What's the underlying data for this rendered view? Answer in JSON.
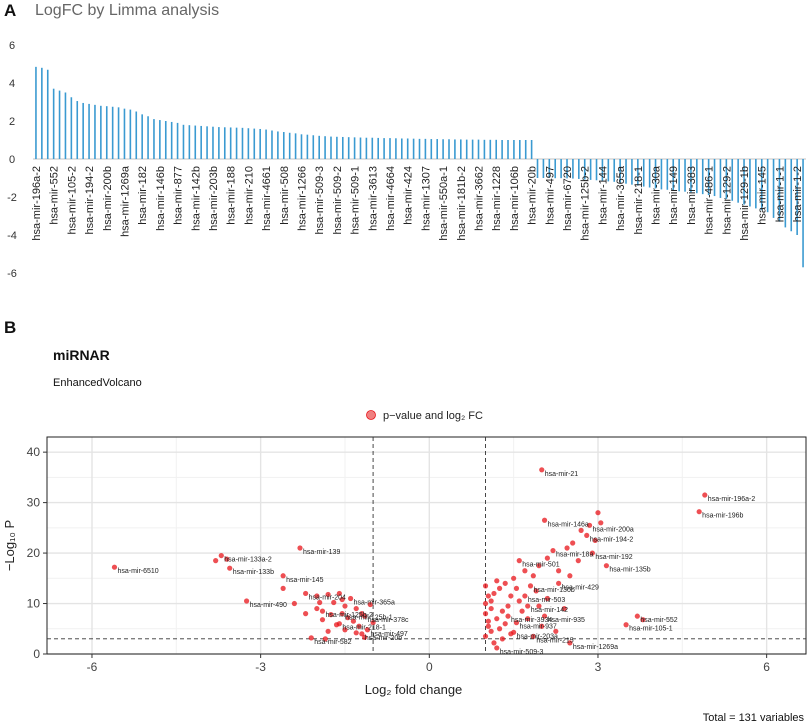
{
  "panel_a_letter": "A",
  "panel_b_letter": "B",
  "chart_data": [
    {
      "type": "bar",
      "title": "LogFC by Limma analysis",
      "xlabel": "",
      "ylabel": "",
      "ylim": [
        -6,
        6
      ],
      "yticks": [
        6,
        4,
        2,
        0,
        -2,
        -4,
        -6
      ],
      "bar_color": "#3a9ad1",
      "label_every": 3,
      "categories": [
        "hsa-mir-196a-2",
        "hsa-mir-196b",
        "hsa-mir-146a",
        "hsa-mir-552",
        "hsa-mir-18a",
        "hsa-mir-21",
        "hsa-mir-105-2",
        "hsa-mir-105-1",
        "hsa-mir-200a",
        "hsa-mir-194-2",
        "hsa-mir-135b",
        "hsa-mir-192",
        "hsa-mir-200b",
        "hsa-mir-9-1",
        "hsa-mir-9-2",
        "hsa-mir-1269a",
        "hsa-mir-429",
        "hsa-mir-224",
        "hsa-mir-182",
        "hsa-mir-183",
        "hsa-mir-142",
        "hsa-mir-146b",
        "hsa-mir-501",
        "hsa-mir-503",
        "hsa-mir-877",
        "hsa-mir-130b",
        "hsa-mir-935",
        "hsa-mir-142b",
        "hsa-mir-937",
        "hsa-mir-3934",
        "hsa-mir-203b",
        "hsa-mir-215",
        "hsa-mir-1293",
        "hsa-mir-188",
        "hsa-mir-203a",
        "hsa-mir-509-1b",
        "hsa-mir-210",
        "hsa-mir-4662",
        "hsa-mir-3677",
        "hsa-mir-4661",
        "hsa-mir-3127",
        "hsa-mir-1976",
        "hsa-mir-508",
        "hsa-mir-514-1",
        "hsa-mir-514-2",
        "hsa-mir-1266",
        "hsa-mir-3609",
        "hsa-mir-4652",
        "hsa-mir-509-3",
        "hsa-mir-3200",
        "hsa-mir-3940",
        "hsa-mir-509-2",
        "hsa-mir-4326",
        "hsa-mir-5001",
        "hsa-mir-509-1",
        "hsa-mir-3605",
        "hsa-mir-3622",
        "hsa-mir-3613",
        "hsa-mir-4286",
        "hsa-mir-3917",
        "hsa-mir-4664",
        "hsa-mir-548f",
        "hsa-mir-548j",
        "hsa-mir-424",
        "hsa-mir-4640",
        "hsa-mir-3151",
        "hsa-mir-1307",
        "hsa-mir-550a-2",
        "hsa-mir-675",
        "hsa-mir-550a-1",
        "hsa-mir-4709",
        "hsa-mir-3191",
        "hsa-mir-181b-2",
        "hsa-mir-181a-2",
        "hsa-mir-3139",
        "hsa-mir-3662",
        "hsa-mir-3065",
        "hsa-mir-1249",
        "hsa-mir-1228",
        "hsa-mir-3174",
        "hsa-mir-5691",
        "hsa-mir-106b",
        "hsa-mir-3607",
        "hsa-mir-3677b",
        "hsa-mir-20b",
        "hsa-mir-363",
        "hsa-mir-1287",
        "hsa-mir-497",
        "hsa-mir-195",
        "hsa-mir-218-2",
        "hsa-mir-6720",
        "hsa-mir-378c",
        "hsa-mir-3614",
        "hsa-mir-125b-2",
        "hsa-mir-125b-1",
        "hsa-mir-99a",
        "hsa-mir-144",
        "hsa-mir-451a",
        "hsa-mir-100",
        "hsa-mir-365a",
        "hsa-mir-490",
        "hsa-mir-133b",
        "hsa-mir-218-1",
        "hsa-mir-139",
        "hsa-mir-204",
        "hsa-mir-30a",
        "hsa-mir-30c-2",
        "hsa-mir-1-2b",
        "hsa-mir-149",
        "hsa-mir-486-2",
        "hsa-mir-143",
        "hsa-mir-383",
        "hsa-mir-4423",
        "hsa-mir-6507",
        "hsa-mir-486-1",
        "hsa-mir-326",
        "hsa-mir-129-1",
        "hsa-mir-129-2",
        "hsa-mir-1-1b",
        "hsa-mir-133a-1",
        "hsa-mir-129-1b",
        "hsa-mir-1-2c",
        "hsa-mir-133a-2",
        "hsa-mir-145",
        "hsa-mir-6510",
        "hsa-mir-1-1c",
        "hsa-mir-1-1",
        "hsa-mir-133a-3",
        "hsa-mir-206",
        "hsa-mir-1-2",
        "hsa-mir-6510b"
      ],
      "values": [
        4.85,
        4.8,
        4.7,
        3.7,
        3.6,
        3.5,
        3.25,
        3.05,
        2.95,
        2.9,
        2.85,
        2.8,
        2.78,
        2.75,
        2.72,
        2.65,
        2.6,
        2.5,
        2.35,
        2.25,
        2.1,
        2.05,
        2.0,
        1.95,
        1.9,
        1.8,
        1.78,
        1.76,
        1.74,
        1.72,
        1.7,
        1.68,
        1.67,
        1.66,
        1.65,
        1.64,
        1.62,
        1.6,
        1.58,
        1.55,
        1.5,
        1.45,
        1.42,
        1.38,
        1.35,
        1.3,
        1.28,
        1.25,
        1.22,
        1.2,
        1.18,
        1.17,
        1.16,
        1.15,
        1.14,
        1.13,
        1.12,
        1.12,
        1.11,
        1.1,
        1.1,
        1.09,
        1.08,
        1.08,
        1.07,
        1.06,
        1.06,
        1.05,
        1.05,
        1.04,
        1.04,
        1.03,
        1.03,
        1.02,
        1.02,
        1.02,
        1.01,
        1.01,
        1.01,
        1.0,
        1.0,
        1.0,
        1.0,
        1.0,
        1.0,
        -1.0,
        -1.0,
        -1.0,
        -1.01,
        -1.01,
        -1.02,
        -1.03,
        -1.05,
        -1.08,
        -1.1,
        -1.12,
        -1.15,
        -1.18,
        -1.2,
        -1.25,
        -1.3,
        -1.35,
        -1.4,
        -1.45,
        -1.5,
        -1.55,
        -1.6,
        -1.62,
        -1.65,
        -1.7,
        -1.72,
        -1.75,
        -1.8,
        -1.85,
        -1.9,
        -1.95,
        -2.05,
        -2.1,
        -2.2,
        -2.3,
        -2.4,
        -2.5,
        -2.6,
        -2.7,
        -2.8,
        -3.1,
        -3.3,
        -3.6,
        -3.8,
        -4.0,
        -5.7
      ]
    },
    {
      "type": "scatter",
      "title": "miRNAR",
      "subtitle": "EnhancedVolcano",
      "legend": "p−value and log₂ FC",
      "legend_position": "top",
      "xlabel": "Log₂ fold change",
      "ylabel": "−Log₁₀ P",
      "xlim": [
        -6.8,
        6.7
      ],
      "ylim": [
        0,
        43
      ],
      "xticks": [
        -6,
        -3,
        0,
        3,
        6
      ],
      "yticks": [
        0,
        10,
        20,
        30,
        40
      ],
      "fc_cutoff": 1,
      "p_cutoff": 3,
      "point_color": "#e8141a",
      "caption": "Total = 131 variables",
      "points": [
        {
          "x": 4.9,
          "y": 31.5,
          "label": "hsa-mir-196a-2"
        },
        {
          "x": 4.8,
          "y": 28.2,
          "label": "hsa-mir-196b"
        },
        {
          "x": 2.0,
          "y": 36.5,
          "label": "hsa-mir-21"
        },
        {
          "x": 2.05,
          "y": 26.5,
          "label": "hsa-mir-146a"
        },
        {
          "x": 2.85,
          "y": 25.5,
          "label": "hsa-mir-200a"
        },
        {
          "x": 2.8,
          "y": 23.5,
          "label": "hsa-mir-194-2"
        },
        {
          "x": 2.2,
          "y": 20.5,
          "label": "hsa-mir-18a"
        },
        {
          "x": 2.9,
          "y": 20.0,
          "label": "hsa-mir-192"
        },
        {
          "x": 3.15,
          "y": 17.5,
          "label": "hsa-mir-135b"
        },
        {
          "x": 1.6,
          "y": 18.5,
          "label": "hsa-mir-501"
        },
        {
          "x": 1.8,
          "y": 13.5,
          "label": "hsa-mir-130b"
        },
        {
          "x": 2.3,
          "y": 14.0,
          "label": "hsa-mir-429"
        },
        {
          "x": 1.7,
          "y": 11.5,
          "label": "hsa-mir-503"
        },
        {
          "x": 1.75,
          "y": 9.5,
          "label": "hsa-mir-142"
        },
        {
          "x": 1.4,
          "y": 7.5,
          "label": "hsa-mir-3934"
        },
        {
          "x": 2.05,
          "y": 7.5,
          "label": "hsa-mir-935"
        },
        {
          "x": 1.55,
          "y": 6.2,
          "label": "hsa-mir-937"
        },
        {
          "x": 1.5,
          "y": 4.3,
          "label": "hsa-mir-203a"
        },
        {
          "x": 1.85,
          "y": 3.5,
          "label": "hsa-mir-215"
        },
        {
          "x": 2.5,
          "y": 2.2,
          "label": "hsa-mir-1269a"
        },
        {
          "x": 1.2,
          "y": 1.2,
          "label": "hsa-mir-509-3"
        },
        {
          "x": 3.7,
          "y": 7.5,
          "label": "hsa-mir-552"
        },
        {
          "x": 3.5,
          "y": 5.8,
          "label": "hsa-mir-105-1"
        },
        {
          "x": -5.6,
          "y": 17.2,
          "label": "hsa-mir-6510"
        },
        {
          "x": -3.7,
          "y": 19.5,
          "label": "hsa-mir-133a-2"
        },
        {
          "x": -3.55,
          "y": 17.0,
          "label": "hsa-mir-133b"
        },
        {
          "x": -2.3,
          "y": 21.0,
          "label": "hsa-mir-139"
        },
        {
          "x": -2.6,
          "y": 15.5,
          "label": "hsa-mir-145"
        },
        {
          "x": -2.2,
          "y": 12.0,
          "label": "hsa-mir-204"
        },
        {
          "x": -3.25,
          "y": 10.5,
          "label": "hsa-mir-490"
        },
        {
          "x": -1.4,
          "y": 11.0,
          "label": "hsa-mir-365a"
        },
        {
          "x": -1.9,
          "y": 8.5,
          "label": "hsa-mir-125b-2"
        },
        {
          "x": -1.55,
          "y": 8.0,
          "label": "hsa-mir-125b-1"
        },
        {
          "x": -1.15,
          "y": 7.5,
          "label": "hsa-mir-378c"
        },
        {
          "x": -1.6,
          "y": 6.0,
          "label": "hsa-mir-218-1"
        },
        {
          "x": -1.1,
          "y": 4.8,
          "label": "hsa-mir-497"
        },
        {
          "x": -1.2,
          "y": 4.0,
          "label": "hsa-mir-20b"
        },
        {
          "x": -2.1,
          "y": 3.2,
          "label": "hsa-mir-582"
        },
        {
          "x": 3.0,
          "y": 28.0
        },
        {
          "x": 3.05,
          "y": 26.0
        },
        {
          "x": 2.7,
          "y": 24.5
        },
        {
          "x": 2.95,
          "y": 22.5
        },
        {
          "x": 2.45,
          "y": 21.0
        },
        {
          "x": 2.1,
          "y": 19.0
        },
        {
          "x": 1.95,
          "y": 17.5
        },
        {
          "x": 1.7,
          "y": 16.5
        },
        {
          "x": 1.5,
          "y": 15.0
        },
        {
          "x": 1.35,
          "y": 14.0
        },
        {
          "x": 1.25,
          "y": 13.0
        },
        {
          "x": 1.15,
          "y": 12.0
        },
        {
          "x": 1.05,
          "y": 11.5
        },
        {
          "x": 1.0,
          "y": 10.0
        },
        {
          "x": 1.1,
          "y": 9.0
        },
        {
          "x": 1.3,
          "y": 8.5
        },
        {
          "x": 1.0,
          "y": 8.0
        },
        {
          "x": 1.2,
          "y": 7.0
        },
        {
          "x": 1.05,
          "y": 6.5
        },
        {
          "x": 1.35,
          "y": 6.0
        },
        {
          "x": 1.05,
          "y": 5.5
        },
        {
          "x": 1.25,
          "y": 5.0
        },
        {
          "x": 1.1,
          "y": 4.5
        },
        {
          "x": 1.45,
          "y": 4.0
        },
        {
          "x": 1.0,
          "y": 3.5
        },
        {
          "x": 1.3,
          "y": 3.0
        },
        {
          "x": 1.15,
          "y": 2.2
        },
        {
          "x": 1.6,
          "y": 10.5
        },
        {
          "x": 1.9,
          "y": 12.5
        },
        {
          "x": 2.1,
          "y": 11.0
        },
        {
          "x": 2.4,
          "y": 9.0
        },
        {
          "x": 2.5,
          "y": 15.5
        },
        {
          "x": 2.3,
          "y": 16.5
        },
        {
          "x": 1.85,
          "y": 15.5
        },
        {
          "x": 1.55,
          "y": 13.0
        },
        {
          "x": 1.45,
          "y": 11.5
        },
        {
          "x": 1.75,
          "y": 7.0
        },
        {
          "x": 2.0,
          "y": 5.5
        },
        {
          "x": 2.25,
          "y": 4.5
        },
        {
          "x": 1.4,
          "y": 9.5
        },
        {
          "x": 1.1,
          "y": 10.5
        },
        {
          "x": 1.0,
          "y": 13.5
        },
        {
          "x": 1.2,
          "y": 14.5
        },
        {
          "x": 3.8,
          "y": 6.8
        },
        {
          "x": 2.65,
          "y": 18.5
        },
        {
          "x": 2.55,
          "y": 22.0
        },
        {
          "x": 1.65,
          "y": 8.5
        },
        {
          "x": 1.95,
          "y": 9.5
        },
        {
          "x": -3.8,
          "y": 18.5
        },
        {
          "x": -3.6,
          "y": 18.8
        },
        {
          "x": -2.6,
          "y": 13.0
        },
        {
          "x": -2.4,
          "y": 10.0
        },
        {
          "x": -2.0,
          "y": 11.5
        },
        {
          "x": -1.8,
          "y": 11.8
        },
        {
          "x": -1.7,
          "y": 10.2
        },
        {
          "x": -1.5,
          "y": 9.5
        },
        {
          "x": -1.3,
          "y": 9.0
        },
        {
          "x": -1.2,
          "y": 8.0
        },
        {
          "x": -1.45,
          "y": 7.2
        },
        {
          "x": -1.35,
          "y": 6.5
        },
        {
          "x": -1.65,
          "y": 5.8
        },
        {
          "x": -1.75,
          "y": 7.8
        },
        {
          "x": -2.0,
          "y": 9.0
        },
        {
          "x": -1.9,
          "y": 6.8
        },
        {
          "x": -1.25,
          "y": 5.5
        },
        {
          "x": -1.5,
          "y": 4.8
        },
        {
          "x": -1.8,
          "y": 4.5
        },
        {
          "x": -1.15,
          "y": 3.3
        },
        {
          "x": -1.0,
          "y": 6.2
        },
        {
          "x": -1.05,
          "y": 9.8
        },
        {
          "x": -1.55,
          "y": 10.8
        },
        {
          "x": -1.95,
          "y": 10.2
        },
        {
          "x": -2.2,
          "y": 8.0
        },
        {
          "x": -1.6,
          "y": 12.0
        },
        {
          "x": -1.85,
          "y": 3.0
        },
        {
          "x": -1.3,
          "y": 4.2
        }
      ]
    }
  ]
}
